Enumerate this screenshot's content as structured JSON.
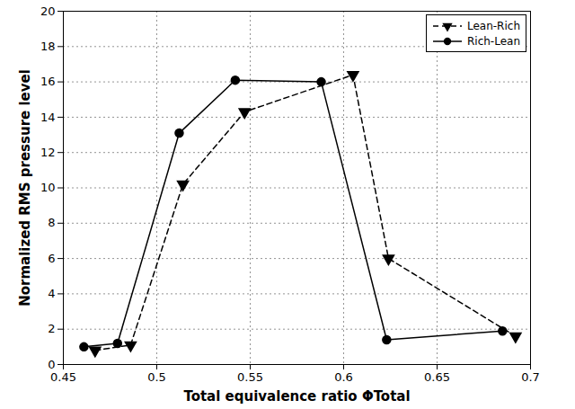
{
  "chart_data": {
    "type": "line",
    "x_label": "Total equivalence ratio ΦTotal",
    "y_label": "Normalized RMS pressure level",
    "xlim": [
      0.45,
      0.7
    ],
    "xticks": [
      0.45,
      0.5,
      0.55,
      0.6,
      0.65,
      0.7
    ],
    "ylim": [
      0,
      20
    ],
    "yticks": [
      0,
      2,
      4,
      6,
      8,
      10,
      12,
      14,
      16,
      18,
      20
    ],
    "grid": true,
    "legend": "top-right",
    "series": [
      {
        "name": "Lean-Rich",
        "color": "#000000",
        "marker": "triangle-down",
        "line_style": "dashed",
        "x": [
          0.467,
          0.486,
          0.514,
          0.547,
          0.605,
          0.624,
          0.692
        ],
        "values": [
          0.8,
          1.1,
          10.2,
          14.3,
          16.4,
          6.0,
          1.6
        ]
      },
      {
        "name": "Rich-Lean",
        "color": "#000000",
        "marker": "circle",
        "line_style": "solid",
        "x": [
          0.461,
          0.479,
          0.512,
          0.542,
          0.588,
          0.623,
          0.685
        ],
        "values": [
          1.0,
          1.2,
          13.1,
          16.1,
          16.0,
          1.4,
          1.9
        ]
      }
    ]
  }
}
